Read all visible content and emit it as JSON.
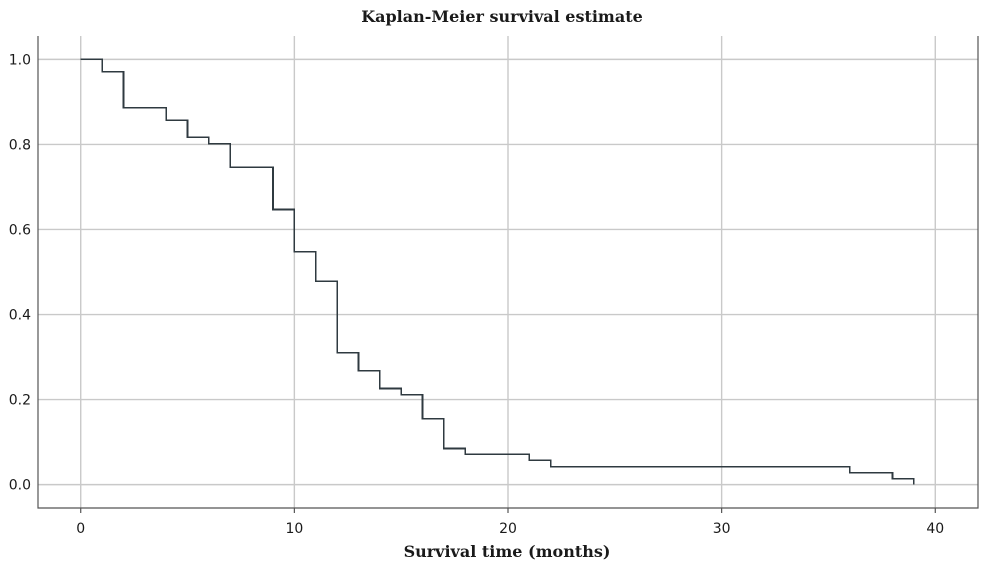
{
  "chart_data": {
    "type": "line",
    "subtype": "step",
    "title": "Kaplan-Meier survival estimate",
    "xlabel": "Survival time (months)",
    "ylabel": "",
    "xlim": [
      -2,
      42
    ],
    "ylim": [
      -0.055,
      1.055
    ],
    "xticks": [
      0,
      10,
      20,
      30,
      40
    ],
    "yticks": [
      0.0,
      0.2,
      0.4,
      0.6,
      0.8,
      1.0
    ],
    "xtick_labels": [
      "0",
      "10",
      "20",
      "30",
      "40"
    ],
    "ytick_labels": [
      "0.0",
      "0.2",
      "0.4",
      "0.6",
      "0.8",
      "1.0"
    ],
    "grid": true,
    "legend": "none",
    "colors": {
      "line": "#2f3a40",
      "grid": "#c9c9c9"
    },
    "series": [
      {
        "x": [
          0,
          1,
          2,
          4,
          5,
          6,
          7,
          9,
          10,
          11,
          12,
          13,
          14,
          15,
          16,
          17,
          18,
          21,
          22,
          36,
          38,
          39
        ],
        "y": [
          1.0,
          0.971,
          0.886,
          0.857,
          0.817,
          0.802,
          0.746,
          0.647,
          0.548,
          0.478,
          0.31,
          0.268,
          0.226,
          0.211,
          0.155,
          0.085,
          0.071,
          0.057,
          0.042,
          0.028,
          0.014,
          0.0
        ]
      }
    ]
  }
}
